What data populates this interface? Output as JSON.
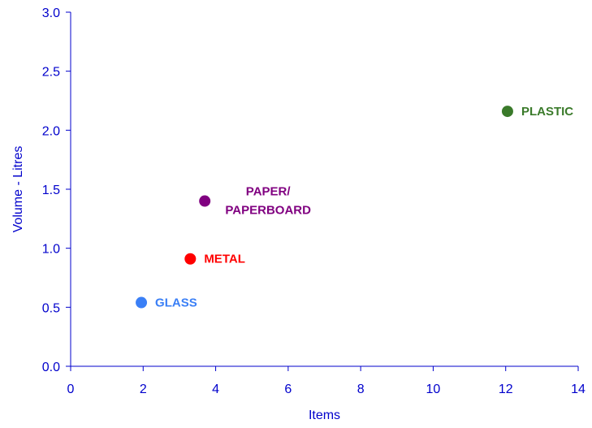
{
  "chart_data": {
    "type": "scatter",
    "title": "",
    "xlabel": "Items",
    "ylabel": "Volume - Litres",
    "xlim": [
      0,
      14
    ],
    "ylim": [
      0,
      3.0
    ],
    "x_ticks": [
      "0",
      "2",
      "4",
      "6",
      "8",
      "10",
      "12",
      "14"
    ],
    "y_ticks": [
      "0.0",
      "0.5",
      "1.0",
      "1.5",
      "2.0",
      "2.5",
      "3.0"
    ],
    "grid": false,
    "legend": "none",
    "axis_color": "#0000cc",
    "points": [
      {
        "name": "GLASS",
        "label_lines": [
          "GLASS"
        ],
        "x": 1.95,
        "y": 0.54,
        "color": "#3a7ff6"
      },
      {
        "name": "METAL",
        "label_lines": [
          "METAL"
        ],
        "x": 3.3,
        "y": 0.91,
        "color": "#ff0000"
      },
      {
        "name": "PAPER/ PAPERBOARD",
        "label_lines": [
          "PAPER/",
          "PAPERBOARD"
        ],
        "x": 3.7,
        "y": 1.4,
        "color": "#800080"
      },
      {
        "name": "PLASTIC",
        "label_lines": [
          "PLASTIC"
        ],
        "x": 12.05,
        "y": 2.16,
        "color": "#3a7a2a"
      }
    ]
  }
}
